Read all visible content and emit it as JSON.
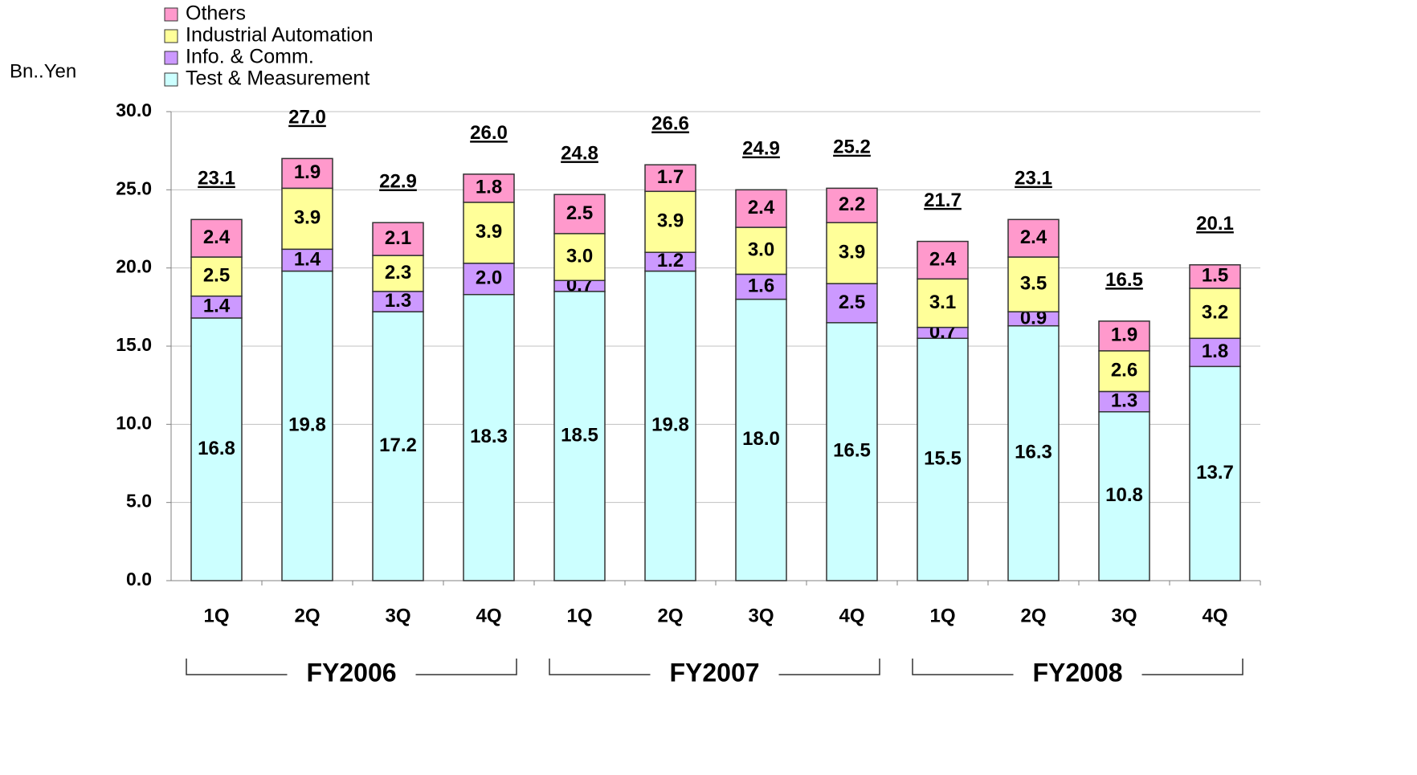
{
  "chart_data": {
    "type": "stacked_bar",
    "y_label": "Bn..Yen",
    "categories": [
      "1Q",
      "2Q",
      "3Q",
      "4Q",
      "1Q",
      "2Q",
      "3Q",
      "4Q",
      "1Q",
      "2Q",
      "3Q",
      "4Q"
    ],
    "groups": [
      "FY2006",
      "FY2007",
      "FY2008"
    ],
    "series": [
      {
        "name": "Test & Measurement",
        "color": "#ccffff",
        "values": [
          16.8,
          19.8,
          17.2,
          18.3,
          18.5,
          19.8,
          18.0,
          16.5,
          15.5,
          16.3,
          10.8,
          13.7
        ],
        "value_labels": [
          "16.8",
          "19.8",
          "17.2",
          "18.3",
          "18.5",
          "19.8",
          "18.0",
          "16.5",
          "15.5",
          "16.3",
          "10.8",
          "13.7"
        ]
      },
      {
        "name": "Info. & Comm.",
        "color": "#cc99ff",
        "values": [
          1.4,
          1.4,
          1.3,
          2.0,
          0.7,
          1.2,
          1.6,
          2.5,
          0.7,
          0.9,
          1.3,
          1.8
        ],
        "value_labels": [
          "1.4",
          "1.4",
          "1.3",
          "2.0",
          "0.7",
          "1.2",
          "1.6",
          "2.5",
          "0.7",
          "0.9",
          "1.3",
          "1.8"
        ]
      },
      {
        "name": "Industrial Automation",
        "color": "#ffff99",
        "values": [
          2.5,
          3.9,
          2.3,
          3.9,
          3.0,
          3.9,
          3.0,
          3.9,
          3.1,
          3.5,
          2.6,
          3.2
        ],
        "value_labels": [
          "2.5",
          "3.9",
          "2.3",
          "3.9",
          "3.0",
          "3.9",
          "3.0",
          "3.9",
          "3.1",
          "3.5",
          "2.6",
          "3.2"
        ]
      },
      {
        "name": "Others",
        "color": "#ff99cc",
        "values": [
          2.4,
          1.9,
          2.1,
          1.8,
          2.5,
          1.7,
          2.4,
          2.2,
          2.4,
          2.4,
          1.9,
          1.5
        ],
        "value_labels": [
          "2.4",
          "1.9",
          "2.1",
          "1.8",
          "2.5",
          "1.7",
          "2.4",
          "2.2",
          "2.4",
          "2.4",
          "1.9",
          "1.5"
        ]
      }
    ],
    "totals": [
      23.1,
      27.0,
      22.9,
      26.0,
      24.8,
      26.6,
      24.9,
      25.2,
      21.7,
      23.1,
      16.5,
      20.1
    ],
    "total_labels": [
      "23.1",
      "27.0",
      "22.9",
      "26.0",
      "24.8",
      "26.6",
      "24.9",
      "25.2",
      "21.7",
      "23.1",
      "16.5",
      "20.1"
    ],
    "ylim": [
      0,
      30
    ],
    "yticks": [
      {
        "value": 0,
        "label": "0.0"
      },
      {
        "value": 5,
        "label": "5.0"
      },
      {
        "value": 10,
        "label": "10.0"
      },
      {
        "value": 15,
        "label": "15.0"
      },
      {
        "value": 20,
        "label": "20.0"
      },
      {
        "value": 25,
        "label": "25.0"
      },
      {
        "value": 30,
        "label": "30.0"
      }
    ],
    "grid": true,
    "legend": "top-left"
  }
}
